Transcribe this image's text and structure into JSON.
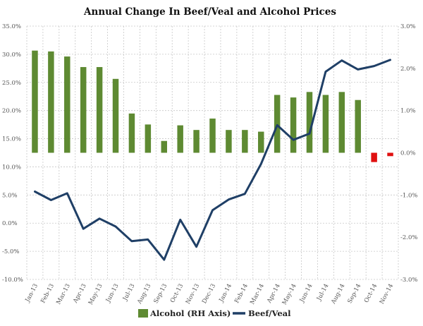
{
  "chart_data": {
    "type": "bar+line",
    "title": "Annual Change In Beef/Veal and Alcohol Prices",
    "categories": [
      "Jan-13",
      "Feb-13",
      "Mar-13",
      "Apr-13",
      "May-13",
      "Jun-13",
      "Jul-13",
      "Aug-13",
      "Sep-13",
      "Oct-13",
      "Nov-13",
      "Dec-13",
      "Jan-14",
      "Feb-14",
      "Mar-14",
      "Apr-14",
      "May-14",
      "Jun-14",
      "Jul-14",
      "Aug-14",
      "Sep-14",
      "Oct-14",
      "Nov-14"
    ],
    "left_axis": {
      "ylim": [
        -10,
        35
      ],
      "ticks": [
        35,
        30,
        25,
        20,
        15,
        10,
        5,
        0,
        -5,
        -10
      ],
      "tick_labels": [
        "35.0%",
        "30.0%",
        "25.0%",
        "20.0%",
        "15.0%",
        "10.0%",
        "5.0%",
        "0.0%",
        "-5.0%",
        "-10.0%"
      ]
    },
    "right_axis": {
      "ylim": [
        -3,
        3
      ],
      "ticks": [
        3,
        2,
        1,
        0,
        -1,
        -2,
        -3
      ],
      "tick_labels": [
        "3.0%",
        "2.0%",
        "1.0%",
        "0.0%",
        "-1.0%",
        "-2.0%",
        "-3.0%"
      ]
    },
    "series": [
      {
        "name": "Alcohol (RH Axis)",
        "kind": "bar",
        "axis": "right",
        "color": "#5e8a32",
        "negative_color": "#e01010",
        "values": [
          2.42,
          2.4,
          2.28,
          2.03,
          2.03,
          1.75,
          0.93,
          0.67,
          0.28,
          0.65,
          0.54,
          0.81,
          0.54,
          0.54,
          0.5,
          1.37,
          1.31,
          1.44,
          1.37,
          1.44,
          1.25,
          -0.22,
          -0.08
        ]
      },
      {
        "name": "Beef/Veal",
        "kind": "line",
        "axis": "left",
        "color": "#1f3f66",
        "values": [
          5.6,
          4.1,
          5.3,
          -1.0,
          0.8,
          -0.6,
          -3.2,
          -2.9,
          -6.5,
          0.6,
          -4.2,
          2.3,
          4.2,
          5.2,
          10.5,
          17.4,
          14.8,
          15.9,
          26.9,
          28.9,
          27.3,
          27.9,
          29.0
        ]
      }
    ],
    "legend": [
      "Alcohol (RH Axis)",
      "Beef/Veal"
    ]
  }
}
